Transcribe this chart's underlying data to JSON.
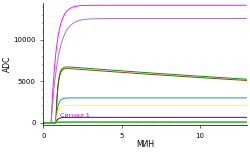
{
  "title_y": "ADC",
  "title_x": "МИН",
  "annotation": "Сигнал 1",
  "xlim": [
    0,
    13
  ],
  "ylim": [
    -300,
    14500
  ],
  "yticks": [
    0,
    5000,
    10000
  ],
  "xticks": [
    0,
    5,
    10
  ],
  "background_color": "#ffffff",
  "curves": [
    {
      "color": "#ff00ff",
      "plateau": 14200,
      "rise_speed": 3.0,
      "start": 0.5,
      "decay": 0.0,
      "peak_time": 1.2
    },
    {
      "color": "#aa66cc",
      "plateau": 12600,
      "rise_speed": 2.2,
      "start": 0.5,
      "decay": 0.0,
      "peak_time": 1.5
    },
    {
      "color": "#008800",
      "plateau": 6800,
      "rise_speed": 8.0,
      "start": 0.8,
      "decay": 0.022,
      "peak_time": 1.3
    },
    {
      "color": "#804000",
      "plateau": 6600,
      "rise_speed": 8.0,
      "start": 0.8,
      "decay": 0.022,
      "peak_time": 1.3
    },
    {
      "color": "#009999",
      "plateau": 3000,
      "rise_speed": 8.0,
      "start": 0.8,
      "decay": 0.0,
      "peak_time": 1.3
    },
    {
      "color": "#ffff00",
      "plateau": 2100,
      "rise_speed": 8.0,
      "start": 0.8,
      "decay": 0.0,
      "peak_time": 1.3
    },
    {
      "color": "#0000dd",
      "plateau": 650,
      "rise_speed": 8.0,
      "start": 0.8,
      "decay": 0.0,
      "peak_time": 1.3
    },
    {
      "color": "#dd0000",
      "plateau": 100,
      "rise_speed": 8.0,
      "start": 0.8,
      "decay": 0.0,
      "peak_time": 1.3
    },
    {
      "color": "#ff88ff",
      "plateau": 120,
      "rise_speed": 12.0,
      "start": 0.5,
      "decay": 0.0,
      "peak_time": 0.8
    },
    {
      "color": "#00cc00",
      "plateau": 60,
      "rise_speed": 8.0,
      "start": 0.8,
      "decay": 0.0,
      "peak_time": 1.3
    }
  ]
}
